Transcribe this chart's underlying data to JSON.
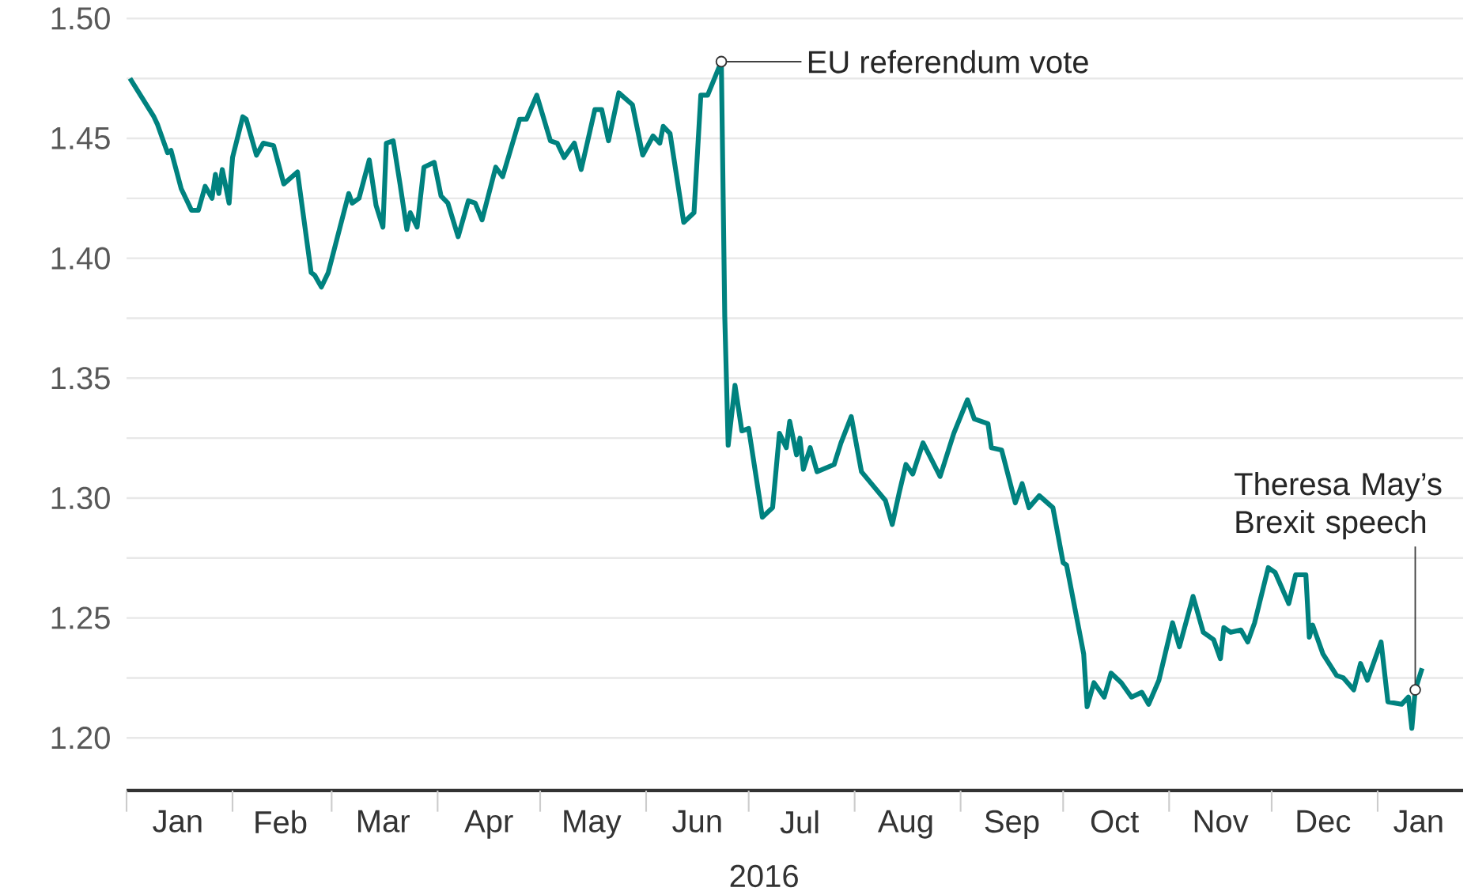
{
  "chart_data": {
    "type": "line",
    "xlabel": "2016",
    "x": [
      "2016-01-02",
      "2016-01-09",
      "2016-01-10",
      "2016-01-11",
      "2016-01-13",
      "2016-01-14",
      "2016-01-17",
      "2016-01-20",
      "2016-01-22",
      "2016-01-24",
      "2016-01-26",
      "2016-01-27",
      "2016-01-28",
      "2016-01-29",
      "2016-01-31",
      "2016-02-01",
      "2016-02-04",
      "2016-02-05",
      "2016-02-08",
      "2016-02-10",
      "2016-02-13",
      "2016-02-16",
      "2016-02-20",
      "2016-02-24",
      "2016-02-25",
      "2016-02-27",
      "2016-02-29",
      "2016-03-06",
      "2016-03-07",
      "2016-03-09",
      "2016-03-12",
      "2016-03-14",
      "2016-03-16",
      "2016-03-17",
      "2016-03-19",
      "2016-03-21",
      "2016-03-23",
      "2016-03-24",
      "2016-03-26",
      "2016-03-28",
      "2016-03-31",
      "2016-04-02",
      "2016-04-04",
      "2016-04-07",
      "2016-04-10",
      "2016-04-12",
      "2016-04-14",
      "2016-04-18",
      "2016-04-20",
      "2016-04-25",
      "2016-04-27",
      "2016-04-30",
      "2016-05-04",
      "2016-05-06",
      "2016-05-08",
      "2016-05-11",
      "2016-05-13",
      "2016-05-17",
      "2016-05-19",
      "2016-05-21",
      "2016-05-24",
      "2016-05-28",
      "2016-05-31",
      "2016-06-03",
      "2016-06-05",
      "2016-06-06",
      "2016-06-08",
      "2016-06-12",
      "2016-06-15",
      "2016-06-17",
      "2016-06-19",
      "2016-06-23",
      "2016-06-24",
      "2016-06-25",
      "2016-06-27",
      "2016-06-29",
      "2016-07-01",
      "2016-07-05",
      "2016-07-08",
      "2016-07-10",
      "2016-07-12",
      "2016-07-13",
      "2016-07-15",
      "2016-07-16",
      "2016-07-17",
      "2016-07-19",
      "2016-07-21",
      "2016-07-26",
      "2016-07-28",
      "2016-07-31",
      "2016-08-03",
      "2016-08-10",
      "2016-08-12",
      "2016-08-14",
      "2016-08-16",
      "2016-08-18",
      "2016-08-21",
      "2016-08-26",
      "2016-08-30",
      "2016-09-03",
      "2016-09-05",
      "2016-09-09",
      "2016-09-10",
      "2016-09-13",
      "2016-09-17",
      "2016-09-19",
      "2016-09-21",
      "2016-09-24",
      "2016-09-28",
      "2016-10-01",
      "2016-10-02",
      "2016-10-07",
      "2016-10-08",
      "2016-10-10",
      "2016-10-13",
      "2016-10-15",
      "2016-10-18",
      "2016-10-21",
      "2016-10-24",
      "2016-10-26",
      "2016-10-29",
      "2016-11-02",
      "2016-11-04",
      "2016-11-08",
      "2016-11-11",
      "2016-11-14",
      "2016-11-16",
      "2016-11-17",
      "2016-11-19",
      "2016-11-22",
      "2016-11-24",
      "2016-11-26",
      "2016-11-30",
      "2016-12-02",
      "2016-12-06",
      "2016-12-08",
      "2016-12-11",
      "2016-12-12",
      "2016-12-13",
      "2016-12-16",
      "2016-12-20",
      "2016-12-22",
      "2016-12-25",
      "2016-12-27",
      "2016-12-29",
      "2017-01-02",
      "2017-01-04",
      "2017-01-08",
      "2017-01-10",
      "2017-01-11",
      "2017-01-12",
      "2017-01-14"
    ],
    "values": [
      1.475,
      1.459,
      1.456,
      1.452,
      1.444,
      1.445,
      1.429,
      1.42,
      1.42,
      1.43,
      1.425,
      1.435,
      1.427,
      1.437,
      1.423,
      1.442,
      1.459,
      1.458,
      1.443,
      1.448,
      1.447,
      1.431,
      1.436,
      1.394,
      1.393,
      1.388,
      1.394,
      1.427,
      1.423,
      1.425,
      1.441,
      1.422,
      1.413,
      1.448,
      1.449,
      1.431,
      1.412,
      1.419,
      1.413,
      1.438,
      1.44,
      1.426,
      1.423,
      1.409,
      1.424,
      1.423,
      1.416,
      1.438,
      1.434,
      1.458,
      1.458,
      1.468,
      1.449,
      1.448,
      1.442,
      1.448,
      1.437,
      1.462,
      1.462,
      1.449,
      1.469,
      1.464,
      1.443,
      1.451,
      1.448,
      1.455,
      1.452,
      1.415,
      1.419,
      1.468,
      1.468,
      1.482,
      1.376,
      1.322,
      1.347,
      1.328,
      1.329,
      1.292,
      1.296,
      1.327,
      1.321,
      1.332,
      1.318,
      1.325,
      1.312,
      1.321,
      1.311,
      1.314,
      1.323,
      1.334,
      1.311,
      1.299,
      1.289,
      1.302,
      1.314,
      1.31,
      1.323,
      1.309,
      1.327,
      1.341,
      1.333,
      1.331,
      1.321,
      1.32,
      1.298,
      1.306,
      1.296,
      1.301,
      1.296,
      1.273,
      1.272,
      1.235,
      1.213,
      1.223,
      1.217,
      1.227,
      1.223,
      1.217,
      1.219,
      1.214,
      1.224,
      1.248,
      1.238,
      1.259,
      1.244,
      1.241,
      1.233,
      1.246,
      1.244,
      1.245,
      1.24,
      1.248,
      1.271,
      1.269,
      1.256,
      1.268,
      1.268,
      1.242,
      1.247,
      1.235,
      1.226,
      1.225,
      1.22,
      1.231,
      1.224,
      1.24,
      1.215,
      1.214,
      1.217,
      1.204,
      1.22,
      1.229
    ],
    "color": "#00827f",
    "xlim": [
      "2016-01-01",
      "2017-01-26"
    ],
    "xticks": [
      {
        "value": "2016-01-01",
        "label": null
      },
      {
        "value": "2016-01-16",
        "label": "Jan"
      },
      {
        "value": "2016-02-01",
        "label": null
      },
      {
        "value": "2016-02-15",
        "label": "Feb"
      },
      {
        "value": "2016-03-01",
        "label": null
      },
      {
        "value": "2016-03-16",
        "label": "Mar"
      },
      {
        "value": "2016-04-01",
        "label": null
      },
      {
        "value": "2016-04-16",
        "label": "Apr"
      },
      {
        "value": "2016-05-01",
        "label": null
      },
      {
        "value": "2016-05-16",
        "label": "May"
      },
      {
        "value": "2016-06-01",
        "label": null
      },
      {
        "value": "2016-06-16",
        "label": "Jun"
      },
      {
        "value": "2016-07-01",
        "label": null
      },
      {
        "value": "2016-07-16",
        "label": "Jul"
      },
      {
        "value": "2016-08-01",
        "label": null
      },
      {
        "value": "2016-08-16",
        "label": "Aug"
      },
      {
        "value": "2016-09-01",
        "label": null
      },
      {
        "value": "2016-09-16",
        "label": "Sep"
      },
      {
        "value": "2016-10-01",
        "label": null
      },
      {
        "value": "2016-10-16",
        "label": "Oct"
      },
      {
        "value": "2016-11-01",
        "label": null
      },
      {
        "value": "2016-11-16",
        "label": "Nov"
      },
      {
        "value": "2016-12-01",
        "label": null
      },
      {
        "value": "2016-12-16",
        "label": "Dec"
      },
      {
        "value": "2017-01-01",
        "label": null
      },
      {
        "value": "2017-01-13",
        "label": "Jan"
      }
    ],
    "ylim": [
      1.178,
      1.5
    ],
    "yticks": [
      {
        "value": 1.2,
        "label": "1.20"
      },
      {
        "value": 1.225,
        "label": null
      },
      {
        "value": 1.25,
        "label": "1.25"
      },
      {
        "value": 1.275,
        "label": null
      },
      {
        "value": 1.3,
        "label": "1.30"
      },
      {
        "value": 1.325,
        "label": null
      },
      {
        "value": 1.35,
        "label": "1.35"
      },
      {
        "value": 1.375,
        "label": null
      },
      {
        "value": 1.4,
        "label": "1.40"
      },
      {
        "value": 1.425,
        "label": null
      },
      {
        "value": 1.45,
        "label": "1.45"
      },
      {
        "value": 1.475,
        "label": null
      },
      {
        "value": 1.5,
        "label": "1.50"
      }
    ],
    "grid": "y",
    "annotations": [
      {
        "text": "EU referendum vote",
        "x": "2016-06-23",
        "y": 1.482
      },
      {
        "text": "Theresa May’s Brexit speech",
        "x": "2017-01-12",
        "y": 1.22
      }
    ]
  }
}
